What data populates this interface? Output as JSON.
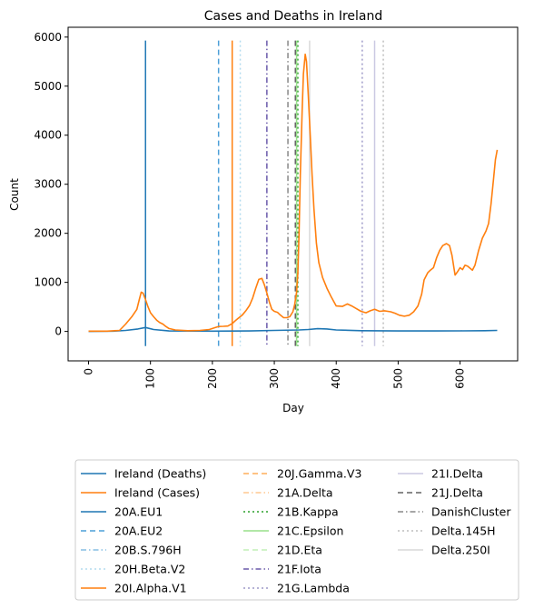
{
  "chart_data": {
    "type": "line",
    "title": "Cases and Deaths in Ireland",
    "xlabel": "Day",
    "ylabel": "Count",
    "xlim": [
      -33,
      693
    ],
    "ylim": [
      -600,
      6200
    ],
    "xticks": [
      0,
      100,
      200,
      300,
      400,
      500,
      600
    ],
    "yticks": [
      0,
      1000,
      2000,
      3000,
      4000,
      5000,
      6000
    ],
    "grid": false,
    "legend_position": "bottom",
    "series": [
      {
        "name": "Ireland (Deaths)",
        "color": "#1f77b4",
        "points": [
          [
            0,
            0
          ],
          [
            40,
            5
          ],
          [
            60,
            20
          ],
          [
            80,
            50
          ],
          [
            92,
            80
          ],
          [
            105,
            40
          ],
          [
            130,
            10
          ],
          [
            200,
            5
          ],
          [
            260,
            10
          ],
          [
            300,
            20
          ],
          [
            340,
            30
          ],
          [
            355,
            40
          ],
          [
            370,
            55
          ],
          [
            385,
            50
          ],
          [
            400,
            30
          ],
          [
            440,
            15
          ],
          [
            500,
            10
          ],
          [
            560,
            10
          ],
          [
            600,
            12
          ],
          [
            640,
            15
          ],
          [
            660,
            20
          ]
        ]
      },
      {
        "name": "Ireland (Cases)",
        "color": "#ff7f0e",
        "points": [
          [
            0,
            5
          ],
          [
            30,
            5
          ],
          [
            50,
            20
          ],
          [
            60,
            150
          ],
          [
            70,
            300
          ],
          [
            78,
            450
          ],
          [
            82,
            650
          ],
          [
            85,
            800
          ],
          [
            88,
            780
          ],
          [
            92,
            650
          ],
          [
            96,
            500
          ],
          [
            100,
            380
          ],
          [
            105,
            300
          ],
          [
            110,
            230
          ],
          [
            115,
            180
          ],
          [
            120,
            150
          ],
          [
            125,
            100
          ],
          [
            130,
            60
          ],
          [
            140,
            30
          ],
          [
            160,
            15
          ],
          [
            180,
            20
          ],
          [
            195,
            40
          ],
          [
            200,
            60
          ],
          [
            205,
            80
          ],
          [
            210,
            100
          ],
          [
            218,
            105
          ],
          [
            225,
            110
          ],
          [
            232,
            160
          ],
          [
            238,
            230
          ],
          [
            242,
            270
          ],
          [
            248,
            330
          ],
          [
            254,
            420
          ],
          [
            260,
            530
          ],
          [
            265,
            680
          ],
          [
            270,
            880
          ],
          [
            275,
            1060
          ],
          [
            280,
            1080
          ],
          [
            284,
            950
          ],
          [
            288,
            780
          ],
          [
            292,
            600
          ],
          [
            296,
            450
          ],
          [
            300,
            410
          ],
          [
            305,
            390
          ],
          [
            310,
            330
          ],
          [
            315,
            280
          ],
          [
            320,
            280
          ],
          [
            325,
            300
          ],
          [
            330,
            400
          ],
          [
            333,
            550
          ],
          [
            336,
            800
          ],
          [
            338,
            1200
          ],
          [
            340,
            2000
          ],
          [
            342,
            3200
          ],
          [
            345,
            4500
          ],
          [
            347,
            5250
          ],
          [
            350,
            5650
          ],
          [
            352,
            5500
          ],
          [
            355,
            4800
          ],
          [
            358,
            4000
          ],
          [
            361,
            3200
          ],
          [
            364,
            2500
          ],
          [
            368,
            1800
          ],
          [
            372,
            1400
          ],
          [
            378,
            1100
          ],
          [
            385,
            880
          ],
          [
            392,
            700
          ],
          [
            400,
            520
          ],
          [
            410,
            510
          ],
          [
            418,
            560
          ],
          [
            425,
            520
          ],
          [
            432,
            470
          ],
          [
            440,
            410
          ],
          [
            448,
            380
          ],
          [
            455,
            420
          ],
          [
            462,
            450
          ],
          [
            470,
            410
          ],
          [
            478,
            420
          ],
          [
            488,
            400
          ],
          [
            495,
            370
          ],
          [
            502,
            330
          ],
          [
            510,
            310
          ],
          [
            518,
            330
          ],
          [
            525,
            400
          ],
          [
            532,
            520
          ],
          [
            538,
            760
          ],
          [
            542,
            1050
          ],
          [
            548,
            1200
          ],
          [
            552,
            1250
          ],
          [
            557,
            1300
          ],
          [
            562,
            1500
          ],
          [
            567,
            1650
          ],
          [
            572,
            1750
          ],
          [
            578,
            1790
          ],
          [
            583,
            1750
          ],
          [
            587,
            1550
          ],
          [
            590,
            1300
          ],
          [
            592,
            1150
          ],
          [
            596,
            1220
          ],
          [
            600,
            1300
          ],
          [
            604,
            1260
          ],
          [
            608,
            1350
          ],
          [
            612,
            1330
          ],
          [
            616,
            1290
          ],
          [
            620,
            1250
          ],
          [
            624,
            1350
          ],
          [
            630,
            1650
          ],
          [
            636,
            1900
          ],
          [
            642,
            2050
          ],
          [
            646,
            2200
          ],
          [
            650,
            2600
          ],
          [
            654,
            3100
          ],
          [
            657,
            3500
          ],
          [
            660,
            3700
          ]
        ]
      }
    ],
    "vlines": [
      {
        "name": "20A.EU1",
        "x": 92,
        "color": "#1f77b4",
        "dash": "",
        "opacity": 1
      },
      {
        "name": "20A.EU2",
        "x": 210,
        "color": "#4d9fd8",
        "dash": "6,4",
        "opacity": 1
      },
      {
        "name": "20B.S.796H",
        "x": 0,
        "color": "#79b7e0",
        "dash": "6,3,1.5,3",
        "opacity": 0.9,
        "hidden": true
      },
      {
        "name": "20H.Beta.V2",
        "x": 245,
        "color": "#b3dcef",
        "dash": "2,3",
        "opacity": 1
      },
      {
        "name": "20I.Alpha.V1",
        "x": 232,
        "color": "#ff7f0e",
        "dash": "",
        "opacity": 1
      },
      {
        "name": "20J.Gamma.V3",
        "x": 0,
        "color": "#ffae5a",
        "dash": "6,4",
        "opacity": 1,
        "hidden": true
      },
      {
        "name": "21A.Delta",
        "x": 0,
        "color": "#ffc891",
        "dash": "6,3,1.5,3",
        "opacity": 1,
        "hidden": true
      },
      {
        "name": "21B.Kappa",
        "x": 338,
        "color": "#2ca02c",
        "dash": "2,3",
        "opacity": 1
      },
      {
        "name": "21C.Epsilon",
        "x": 336,
        "color": "#98df8a",
        "dash": "",
        "opacity": 1
      },
      {
        "name": "21D.Eta",
        "x": 0,
        "color": "#c2efb7",
        "dash": "6,4",
        "opacity": 1,
        "hidden": true
      },
      {
        "name": "21F.Iota",
        "x": 288,
        "color": "#6a5aaa",
        "dash": "6,3,1.5,3",
        "opacity": 1
      },
      {
        "name": "21G.Lambda",
        "x": 442,
        "color": "#9e9ac8",
        "dash": "2,3",
        "opacity": 1
      },
      {
        "name": "21I.Delta",
        "x": 462,
        "color": "#cbc9e2",
        "dash": "",
        "opacity": 1
      },
      {
        "name": "21J.Delta",
        "x": 334,
        "color": "#636363",
        "dash": "6,4",
        "opacity": 1
      },
      {
        "name": "DanishCluster",
        "x": 322,
        "color": "#888888",
        "dash": "6,3,1.5,3",
        "opacity": 1
      },
      {
        "name": "Delta.145H",
        "x": 476,
        "color": "#bdbdbd",
        "dash": "2,3",
        "opacity": 1
      },
      {
        "name": "Delta.250I",
        "x": 357,
        "color": "#d9d9d9",
        "dash": "",
        "opacity": 1
      }
    ],
    "vline_ymin": -300,
    "vline_ymax": 5930
  }
}
